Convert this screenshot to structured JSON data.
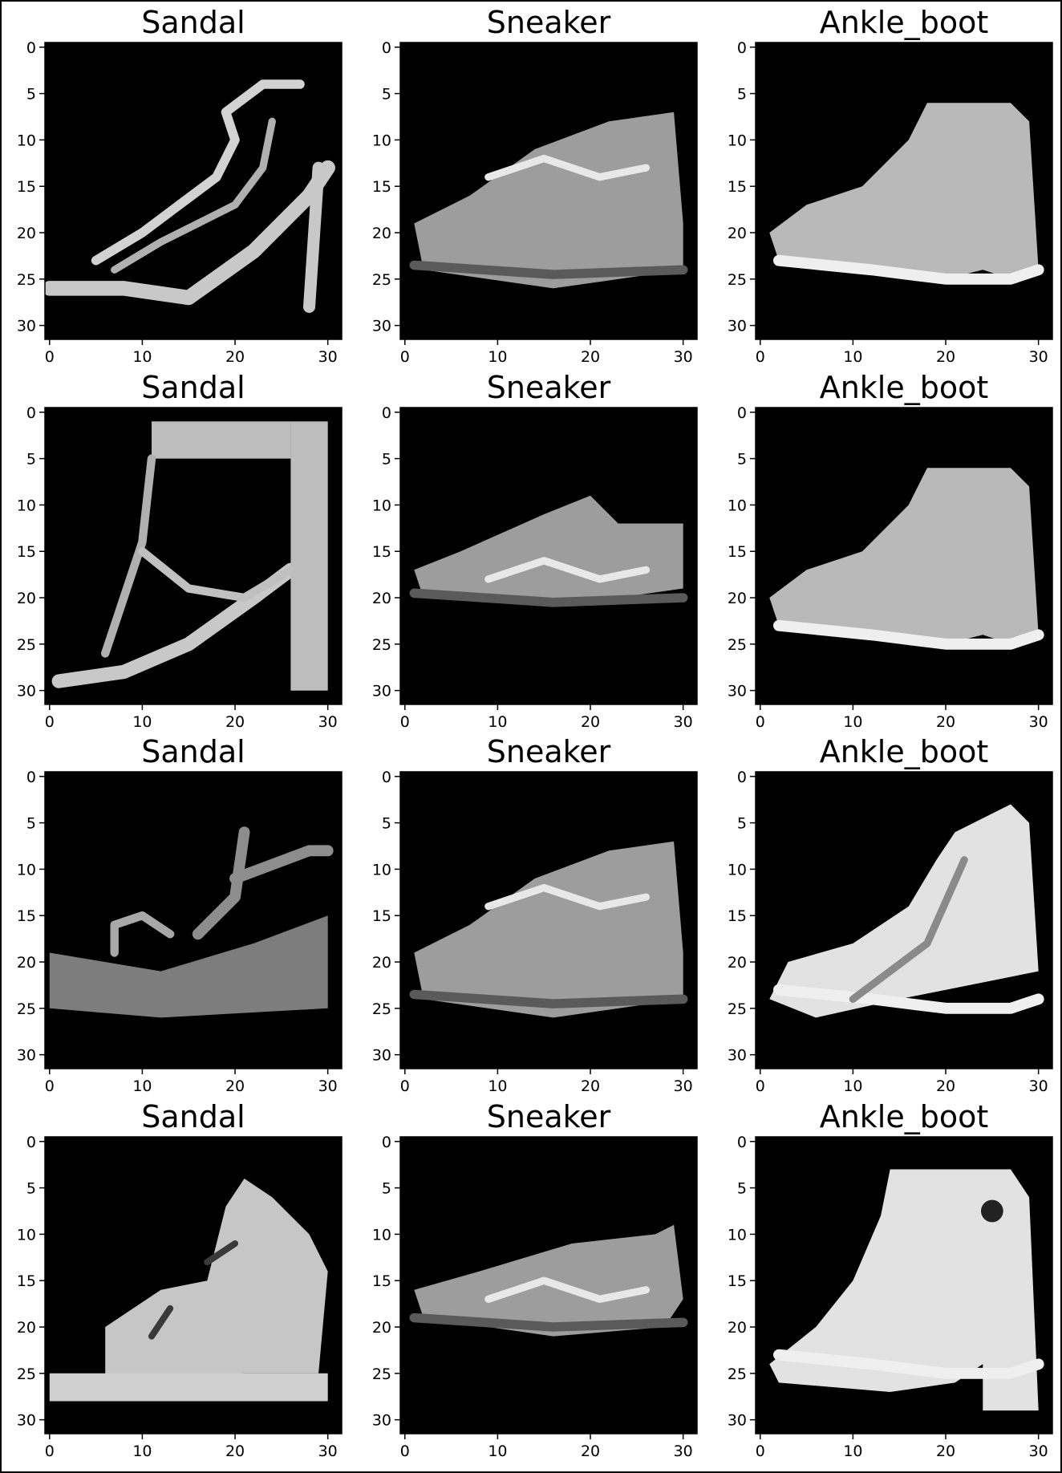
{
  "chart_data": {
    "type": "image_grid",
    "rows": 4,
    "cols": 3,
    "colormap": "gray",
    "background": "#000000",
    "axis_range": {
      "x": [
        0,
        31
      ],
      "y": [
        0,
        31
      ]
    },
    "x_ticks": [
      "0",
      "10",
      "20",
      "30"
    ],
    "y_ticks": [
      "0",
      "5",
      "10",
      "15",
      "20",
      "25",
      "30"
    ],
    "panels": [
      {
        "title": "Sandal",
        "shape": "sandal_heel"
      },
      {
        "title": "Sneaker",
        "shape": "sneaker_high"
      },
      {
        "title": "Ankle_boot",
        "shape": "boot"
      },
      {
        "title": "Sandal",
        "shape": "sandal_tall"
      },
      {
        "title": "Sneaker",
        "shape": "sneaker_low"
      },
      {
        "title": "Ankle_boot",
        "shape": "boot"
      },
      {
        "title": "Sandal",
        "shape": "sandal_wedge"
      },
      {
        "title": "Sneaker",
        "shape": "sneaker_high"
      },
      {
        "title": "Ankle_boot",
        "shape": "boot_slim"
      },
      {
        "title": "Sandal",
        "shape": "sandal_strappy"
      },
      {
        "title": "Sneaker",
        "shape": "sneaker_mid"
      },
      {
        "title": "Ankle_boot",
        "shape": "boot_heel"
      }
    ]
  }
}
